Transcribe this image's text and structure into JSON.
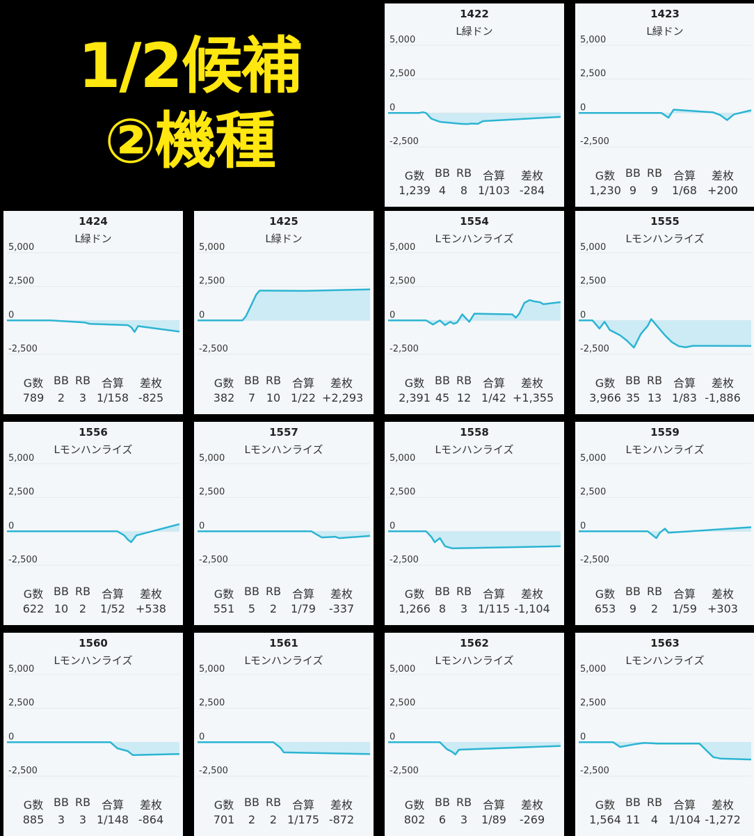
{
  "banner": {
    "line1": "1/2候補",
    "line2": "②機種"
  },
  "stat_headers": [
    "G数",
    "BB",
    "RB",
    "合算",
    "差枚"
  ],
  "chart_data": {
    "type": "area",
    "ylim": [
      -2500,
      5000
    ],
    "yticks": [
      5000,
      2500,
      0,
      -2500
    ],
    "ytick_labels": [
      "5,000",
      "2,500",
      "0",
      "-2,500"
    ],
    "line_color": "#2bb4d2",
    "fill_color": "#bfe7f3",
    "x": "normalized game progress 0-1",
    "machines": [
      {
        "id": "1422",
        "name": "L緑ドン",
        "stats": [
          "1,239",
          "4",
          "8",
          "1/103",
          "-284"
        ],
        "points": [
          [
            0,
            0
          ],
          [
            0.18,
            0
          ],
          [
            0.2,
            60
          ],
          [
            0.22,
            0
          ],
          [
            0.25,
            -420
          ],
          [
            0.3,
            -650
          ],
          [
            0.42,
            -800
          ],
          [
            0.46,
            -820
          ],
          [
            0.48,
            -780
          ],
          [
            0.52,
            -800
          ],
          [
            0.55,
            -600
          ],
          [
            1,
            -284
          ]
        ]
      },
      {
        "id": "1423",
        "name": "L緑ドン",
        "stats": [
          "1,230",
          "9",
          "9",
          "1/68",
          "+200"
        ],
        "points": [
          [
            0,
            0
          ],
          [
            0.48,
            0
          ],
          [
            0.52,
            -350
          ],
          [
            0.55,
            250
          ],
          [
            0.78,
            50
          ],
          [
            0.82,
            -150
          ],
          [
            0.86,
            -520
          ],
          [
            0.9,
            -100
          ],
          [
            1,
            200
          ]
        ]
      },
      {
        "id": "1424",
        "name": "L緑ドン",
        "stats": [
          "789",
          "2",
          "3",
          "1/158",
          "-825"
        ],
        "points": [
          [
            0,
            0
          ],
          [
            0.25,
            0
          ],
          [
            0.45,
            -150
          ],
          [
            0.48,
            -250
          ],
          [
            0.7,
            -350
          ],
          [
            0.72,
            -500
          ],
          [
            0.74,
            -850
          ],
          [
            0.76,
            -420
          ],
          [
            1,
            -825
          ]
        ]
      },
      {
        "id": "1425",
        "name": "L緑ドン",
        "stats": [
          "382",
          "7",
          "10",
          "1/22",
          "+2,293"
        ],
        "points": [
          [
            0,
            0
          ],
          [
            0.26,
            0
          ],
          [
            0.28,
            300
          ],
          [
            0.31,
            1100
          ],
          [
            0.34,
            1900
          ],
          [
            0.36,
            2200
          ],
          [
            0.62,
            2180
          ],
          [
            1,
            2293
          ]
        ]
      },
      {
        "id": "1554",
        "name": "Lモンハンライズ",
        "stats": [
          "2,391",
          "45",
          "12",
          "1/42",
          "+1,355"
        ],
        "points": [
          [
            0,
            0
          ],
          [
            0.22,
            0
          ],
          [
            0.26,
            -300
          ],
          [
            0.3,
            0
          ],
          [
            0.33,
            -350
          ],
          [
            0.36,
            -100
          ],
          [
            0.38,
            -250
          ],
          [
            0.4,
            -150
          ],
          [
            0.43,
            450
          ],
          [
            0.47,
            -100
          ],
          [
            0.5,
            500
          ],
          [
            0.72,
            450
          ],
          [
            0.74,
            200
          ],
          [
            0.76,
            500
          ],
          [
            0.79,
            1300
          ],
          [
            0.82,
            1500
          ],
          [
            0.85,
            1400
          ],
          [
            0.88,
            1350
          ],
          [
            0.9,
            1200
          ],
          [
            1,
            1355
          ]
        ]
      },
      {
        "id": "1555",
        "name": "Lモンハンライズ",
        "stats": [
          "3,966",
          "35",
          "13",
          "1/83",
          "-1,886"
        ],
        "points": [
          [
            0,
            0
          ],
          [
            0.08,
            0
          ],
          [
            0.1,
            -300
          ],
          [
            0.12,
            -600
          ],
          [
            0.15,
            -100
          ],
          [
            0.18,
            -700
          ],
          [
            0.21,
            -900
          ],
          [
            0.24,
            -1100
          ],
          [
            0.28,
            -1500
          ],
          [
            0.32,
            -2000
          ],
          [
            0.36,
            -1000
          ],
          [
            0.4,
            -400
          ],
          [
            0.42,
            100
          ],
          [
            0.46,
            -500
          ],
          [
            0.5,
            -1100
          ],
          [
            0.54,
            -1600
          ],
          [
            0.58,
            -1900
          ],
          [
            0.62,
            -1980
          ],
          [
            0.66,
            -1880
          ],
          [
            1,
            -1886
          ]
        ]
      },
      {
        "id": "1556",
        "name": "Lモンハンライズ",
        "stats": [
          "622",
          "10",
          "2",
          "1/52",
          "+538"
        ],
        "points": [
          [
            0,
            0
          ],
          [
            0.64,
            0
          ],
          [
            0.68,
            -300
          ],
          [
            0.7,
            -600
          ],
          [
            0.72,
            -800
          ],
          [
            0.75,
            -300
          ],
          [
            1,
            538
          ]
        ]
      },
      {
        "id": "1557",
        "name": "Lモンハンライズ",
        "stats": [
          "551",
          "5",
          "2",
          "1/79",
          "-337"
        ],
        "points": [
          [
            0,
            0
          ],
          [
            0.66,
            0
          ],
          [
            0.68,
            -150
          ],
          [
            0.72,
            -450
          ],
          [
            0.8,
            -400
          ],
          [
            0.82,
            -500
          ],
          [
            1,
            -337
          ]
        ]
      },
      {
        "id": "1558",
        "name": "Lモンハンライズ",
        "stats": [
          "1,266",
          "8",
          "3",
          "1/115",
          "-1,104"
        ],
        "points": [
          [
            0,
            0
          ],
          [
            0.22,
            0
          ],
          [
            0.25,
            -400
          ],
          [
            0.27,
            -800
          ],
          [
            0.3,
            -500
          ],
          [
            0.33,
            -1100
          ],
          [
            0.37,
            -1250
          ],
          [
            1,
            -1104
          ]
        ]
      },
      {
        "id": "1559",
        "name": "Lモンハンライズ",
        "stats": [
          "653",
          "9",
          "2",
          "1/59",
          "+303"
        ],
        "points": [
          [
            0,
            0
          ],
          [
            0.4,
            0
          ],
          [
            0.43,
            -300
          ],
          [
            0.45,
            -500
          ],
          [
            0.47,
            -100
          ],
          [
            0.5,
            200
          ],
          [
            0.52,
            -100
          ],
          [
            1,
            303
          ]
        ]
      },
      {
        "id": "1560",
        "name": "Lモンハンライズ",
        "stats": [
          "885",
          "3",
          "3",
          "1/148",
          "-864"
        ],
        "points": [
          [
            0,
            0
          ],
          [
            0.6,
            0
          ],
          [
            0.64,
            -450
          ],
          [
            0.7,
            -650
          ],
          [
            0.73,
            -950
          ],
          [
            1,
            -864
          ]
        ]
      },
      {
        "id": "1561",
        "name": "Lモンハンライズ",
        "stats": [
          "701",
          "2",
          "2",
          "1/175",
          "-872"
        ],
        "points": [
          [
            0,
            0
          ],
          [
            0.44,
            0
          ],
          [
            0.48,
            -400
          ],
          [
            0.5,
            -750
          ],
          [
            1,
            -872
          ]
        ]
      },
      {
        "id": "1562",
        "name": "Lモンハンライズ",
        "stats": [
          "802",
          "6",
          "3",
          "1/89",
          "-269"
        ],
        "points": [
          [
            0,
            0
          ],
          [
            0.3,
            0
          ],
          [
            0.34,
            -500
          ],
          [
            0.37,
            -700
          ],
          [
            0.39,
            -900
          ],
          [
            0.41,
            -550
          ],
          [
            1,
            -269
          ]
        ]
      },
      {
        "id": "1563",
        "name": "Lモンハンライズ",
        "stats": [
          "1,564",
          "11",
          "4",
          "1/104",
          "-1,272"
        ],
        "points": [
          [
            0,
            0
          ],
          [
            0.2,
            0
          ],
          [
            0.24,
            -350
          ],
          [
            0.32,
            -150
          ],
          [
            0.38,
            -50
          ],
          [
            0.46,
            -100
          ],
          [
            0.7,
            -100
          ],
          [
            0.74,
            -600
          ],
          [
            0.78,
            -1100
          ],
          [
            0.82,
            -1200
          ],
          [
            1,
            -1272
          ]
        ]
      }
    ]
  }
}
